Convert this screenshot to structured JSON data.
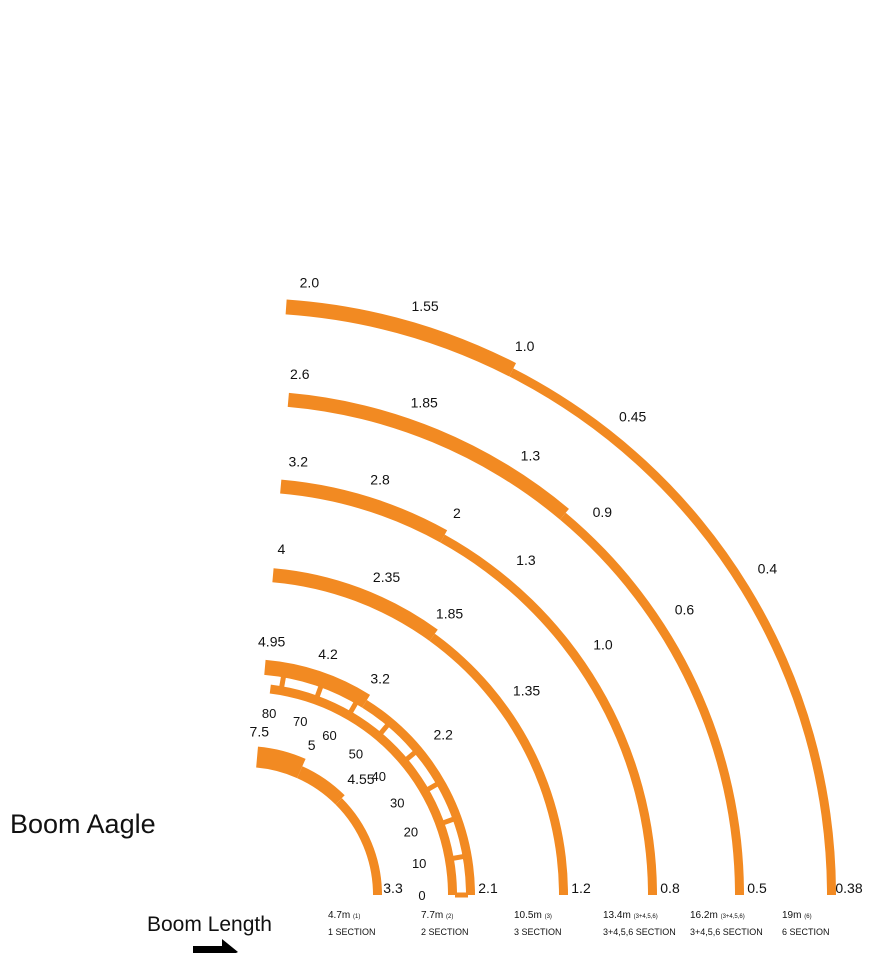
{
  "colors": {
    "arc": "#F28A22",
    "text": "#111111"
  },
  "angle_scale": {
    "title": "Boom Aagle",
    "ticks": [
      {
        "label": "0",
        "deg": 0
      },
      {
        "label": "10",
        "deg": 10
      },
      {
        "label": "20",
        "deg": 20
      },
      {
        "label": "30",
        "deg": 30
      },
      {
        "label": "40",
        "deg": 40
      },
      {
        "label": "50",
        "deg": 50
      },
      {
        "label": "60",
        "deg": 60
      },
      {
        "label": "70",
        "deg": 70
      },
      {
        "label": "80",
        "deg": 80
      }
    ]
  },
  "length_axis": {
    "title": "Boom Length",
    "arrow": "right-arrow-icon"
  },
  "chart_data": {
    "type": "other",
    "booms": [
      {
        "length": "4.7m",
        "length_note": "(1)",
        "section": "1 SECTION",
        "capacities": [
          {
            "deg": 0,
            "value": "3.3"
          },
          {
            "deg": 45,
            "value": "4.55"
          },
          {
            "deg": 66,
            "value": "5"
          },
          {
            "deg": 85,
            "value": "7.5"
          }
        ]
      },
      {
        "length": "7.7m",
        "length_note": "(2)",
        "section": "2 SECTION",
        "capacities": [
          {
            "deg": 0,
            "value": "2.1"
          },
          {
            "deg": 39,
            "value": "2.2"
          },
          {
            "deg": 58,
            "value": "3.2"
          },
          {
            "deg": 71,
            "value": "4.2"
          },
          {
            "deg": 84,
            "value": "4.95"
          }
        ]
      },
      {
        "length": "10.5m",
        "length_note": "(3)",
        "section": "3 SECTION",
        "capacities": [
          {
            "deg": 0,
            "value": "1.2"
          },
          {
            "deg": 36,
            "value": "1.35"
          },
          {
            "deg": 54,
            "value": "1.85"
          },
          {
            "deg": 66,
            "value": "2.35"
          },
          {
            "deg": 84,
            "value": "4"
          }
        ]
      },
      {
        "length": "13.4m",
        "length_note": "(3+4,5,6)",
        "section": "3+4,5,6 SECTION",
        "capacities": [
          {
            "deg": 0,
            "value": "0.8"
          },
          {
            "deg": 35,
            "value": "1.0"
          },
          {
            "deg": 50,
            "value": "1.3"
          },
          {
            "deg": 61,
            "value": "2"
          },
          {
            "deg": 72,
            "value": "2.8"
          },
          {
            "deg": 83,
            "value": "3.2"
          }
        ]
      },
      {
        "length": "16.2m",
        "length_note": "(3+4,5,6)",
        "section": "3+4,5,6 SECTION",
        "capacities": [
          {
            "deg": 0,
            "value": "0.5"
          },
          {
            "deg": 33,
            "value": "0.6"
          },
          {
            "deg": 47,
            "value": "0.9"
          },
          {
            "deg": 57,
            "value": "1.3"
          },
          {
            "deg": 70,
            "value": "1.85"
          },
          {
            "deg": 84,
            "value": "2.6"
          }
        ]
      },
      {
        "length": "19m",
        "length_note": "(6)",
        "section": "6 SECTION",
        "capacities": [
          {
            "deg": 0,
            "value": "0.38"
          },
          {
            "deg": 32,
            "value": "0.4"
          },
          {
            "deg": 51,
            "value": "0.45"
          },
          {
            "deg": 63,
            "value": "1.0"
          },
          {
            "deg": 73,
            "value": "1.55"
          },
          {
            "deg": 84,
            "value": "2.0"
          }
        ]
      }
    ]
  }
}
